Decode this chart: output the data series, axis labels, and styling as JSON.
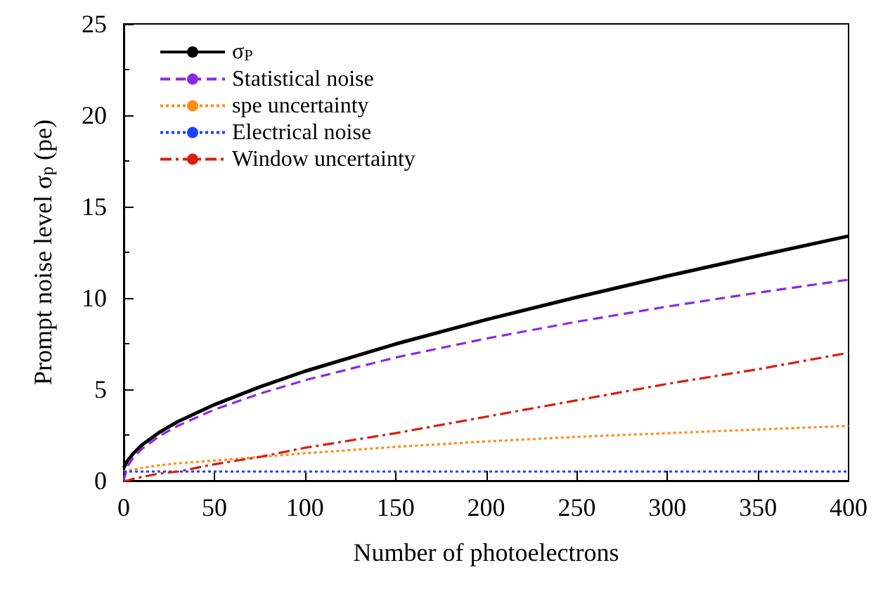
{
  "chart_data": {
    "type": "line",
    "xlabel": "Number of photoelectrons",
    "ylabel": "Prompt noise level σ$_{p}$ (pe)",
    "x": [
      0,
      2,
      5,
      10,
      20,
      30,
      50,
      75,
      100,
      150,
      200,
      250,
      300,
      350,
      400
    ],
    "xlim": [
      0,
      400
    ],
    "xticks": [
      0,
      50,
      100,
      150,
      200,
      250,
      300,
      350,
      400
    ],
    "ylim": [
      0,
      25
    ],
    "yticks": [
      0,
      5,
      10,
      15,
      20,
      25
    ],
    "grid": false,
    "legend": "top left",
    "marker": "none",
    "series": [
      {
        "name": "σ$_{P}$",
        "color": "#000000",
        "line_style": "solid",
        "values": [
          0.71,
          1.08,
          1.46,
          1.95,
          2.67,
          3.24,
          4.16,
          5.13,
          5.99,
          7.48,
          8.81,
          10.04,
          11.2,
          12.31,
          13.39
        ]
      },
      {
        "name": "Statistical noise",
        "color": "#8a2be2",
        "line_style": "dashed",
        "values": [
          0,
          0.78,
          1.23,
          1.74,
          2.46,
          3.01,
          3.89,
          4.76,
          5.5,
          6.74,
          7.78,
          8.7,
          9.53,
          10.29,
          11.0
        ]
      },
      {
        "name": "spe uncertainty",
        "color": "#ff8c1a",
        "line_style": "dotted",
        "values": [
          0.5,
          0.55,
          0.6,
          0.7,
          0.85,
          0.95,
          1.1,
          1.3,
          1.5,
          1.85,
          2.15,
          2.4,
          2.6,
          2.8,
          3.0
        ]
      },
      {
        "name": "Electrical noise",
        "color": "#1f3fff",
        "line_style": "dotted",
        "values": [
          0.5,
          0.5,
          0.5,
          0.5,
          0.5,
          0.5,
          0.5,
          0.5,
          0.5,
          0.5,
          0.5,
          0.5,
          0.5,
          0.5,
          0.5
        ]
      },
      {
        "name": "Window uncertainty",
        "color": "#d62010",
        "line_style": "dashdot",
        "values": [
          0,
          0.0,
          0.1,
          0.2,
          0.4,
          0.5,
          0.9,
          1.3,
          1.8,
          2.6,
          3.5,
          4.4,
          5.3,
          6.1,
          7.0
        ]
      }
    ]
  }
}
